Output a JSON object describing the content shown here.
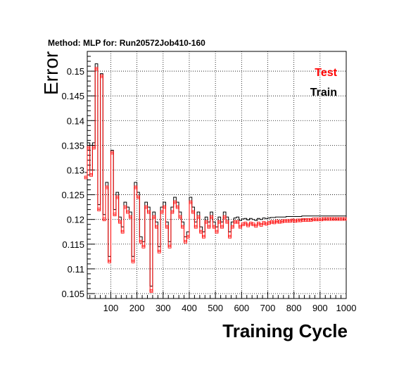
{
  "chart_data": {
    "type": "line",
    "title": "Method: MLP for: Run20572Job410-160",
    "xlabel": "Training Cycle",
    "ylabel": "Error",
    "xlim": [
      10,
      1000
    ],
    "ylim": [
      0.104,
      0.154
    ],
    "xticks": [
      "100",
      "200",
      "300",
      "400",
      "500",
      "600",
      "700",
      "800",
      "900",
      "1000"
    ],
    "yticks": [
      "0.105",
      "0.11",
      "0.115",
      "0.12",
      "0.125",
      "0.13",
      "0.135",
      "0.14",
      "0.145",
      "0.15"
    ],
    "grid": true,
    "legend_position": "top-right",
    "series": [
      {
        "name": "Test",
        "color": "#ff0000",
        "x": [
          10,
          20,
          30,
          40,
          50,
          60,
          70,
          80,
          90,
          100,
          110,
          120,
          130,
          140,
          150,
          160,
          170,
          180,
          190,
          200,
          210,
          220,
          230,
          240,
          250,
          260,
          270,
          280,
          290,
          300,
          310,
          320,
          330,
          340,
          350,
          360,
          370,
          380,
          390,
          400,
          410,
          420,
          430,
          440,
          450,
          460,
          470,
          480,
          490,
          500,
          510,
          520,
          530,
          540,
          550,
          560,
          570,
          580,
          590,
          600,
          610,
          620,
          630,
          640,
          650,
          660,
          670,
          680,
          690,
          700,
          710,
          720,
          730,
          740,
          750,
          760,
          770,
          780,
          790,
          800,
          810,
          820,
          830,
          840,
          850,
          860,
          870,
          880,
          890,
          900,
          910,
          920,
          930,
          940,
          950,
          960,
          970,
          980,
          990,
          1000
        ],
        "y": [
          0.1285,
          0.1345,
          0.129,
          0.1345,
          0.1505,
          0.122,
          0.149,
          0.12,
          0.1265,
          0.1115,
          0.1335,
          0.121,
          0.1245,
          0.1195,
          0.1175,
          0.1225,
          0.1215,
          0.1205,
          0.1115,
          0.1265,
          0.1245,
          0.1155,
          0.1145,
          0.1225,
          0.1215,
          0.1055,
          0.1205,
          0.1185,
          0.1135,
          0.1215,
          0.1225,
          0.1185,
          0.1145,
          0.1215,
          0.1235,
          0.1225,
          0.1205,
          0.1185,
          0.1155,
          0.1165,
          0.1235,
          0.1215,
          0.1185,
          0.1205,
          0.1175,
          0.1165,
          0.1195,
          0.1185,
          0.1205,
          0.1185,
          0.1175,
          0.1195,
          0.1185,
          0.1205,
          0.1195,
          0.1165,
          0.1185,
          0.1195,
          0.1195,
          0.1185,
          0.119,
          0.1192,
          0.1188,
          0.1192,
          0.119,
          0.1187,
          0.1192,
          0.1189,
          0.1193,
          0.1191,
          0.1193,
          0.1195,
          0.1194,
          0.1196,
          0.1195,
          0.1196,
          0.1197,
          0.1197,
          0.1197,
          0.1198,
          0.1197,
          0.1198,
          0.1198,
          0.1199,
          0.1199,
          0.1199,
          0.1199,
          0.12,
          0.12,
          0.12,
          0.12,
          0.1201,
          0.1201,
          0.1201,
          0.1201,
          0.1201,
          0.1201,
          0.1201,
          0.1201,
          0.1201
        ]
      },
      {
        "name": "Train",
        "color": "#000000",
        "x": [
          10,
          20,
          30,
          40,
          50,
          60,
          70,
          80,
          90,
          100,
          110,
          120,
          130,
          140,
          150,
          160,
          170,
          180,
          190,
          200,
          210,
          220,
          230,
          240,
          250,
          260,
          270,
          280,
          290,
          300,
          310,
          320,
          330,
          340,
          350,
          360,
          370,
          380,
          390,
          400,
          410,
          420,
          430,
          440,
          450,
          460,
          470,
          480,
          490,
          500,
          510,
          520,
          530,
          540,
          550,
          560,
          570,
          580,
          590,
          600,
          610,
          620,
          630,
          640,
          650,
          660,
          670,
          680,
          690,
          700,
          710,
          720,
          730,
          740,
          750,
          760,
          770,
          780,
          790,
          800,
          810,
          820,
          830,
          840,
          850,
          860,
          870,
          880,
          890,
          900,
          910,
          920,
          930,
          940,
          950,
          960,
          970,
          980,
          990,
          1000
        ],
        "y": [
          0.1295,
          0.1355,
          0.13,
          0.1355,
          0.1515,
          0.123,
          0.1495,
          0.121,
          0.1275,
          0.1125,
          0.134,
          0.122,
          0.1255,
          0.1205,
          0.1185,
          0.1235,
          0.1225,
          0.1215,
          0.1125,
          0.1275,
          0.1255,
          0.1165,
          0.1155,
          0.1235,
          0.1225,
          0.1065,
          0.1215,
          0.1195,
          0.1145,
          0.1225,
          0.1235,
          0.1195,
          0.1155,
          0.1225,
          0.1245,
          0.1235,
          0.1215,
          0.1195,
          0.1165,
          0.1175,
          0.1245,
          0.1225,
          0.1195,
          0.1215,
          0.1185,
          0.1175,
          0.1205,
          0.1195,
          0.1215,
          0.1195,
          0.1185,
          0.1205,
          0.1195,
          0.1215,
          0.1205,
          0.1175,
          0.1195,
          0.1203,
          0.1205,
          0.1198,
          0.1201,
          0.1202,
          0.1199,
          0.1202,
          0.12,
          0.1198,
          0.1202,
          0.12,
          0.1203,
          0.1202,
          0.1203,
          0.1204,
          0.1204,
          0.1205,
          0.1205,
          0.1205,
          0.1205,
          0.1206,
          0.1206,
          0.1206,
          0.1206,
          0.1206,
          0.1206,
          0.1207,
          0.1207,
          0.1207,
          0.1207,
          0.1207,
          0.1207,
          0.1207,
          0.1207,
          0.1207,
          0.1207,
          0.1207,
          0.1207,
          0.1207,
          0.1207,
          0.1207,
          0.1207,
          0.1207
        ]
      }
    ]
  }
}
